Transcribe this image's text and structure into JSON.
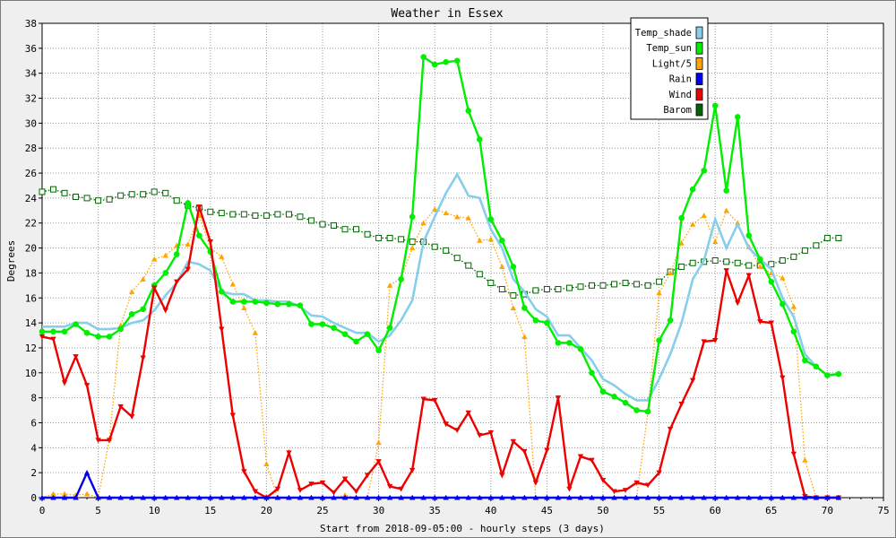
{
  "chart_data": {
    "type": "line",
    "title": "Weather in Essex",
    "xlabel": "Start from 2018-09-05:00 - hourly steps (3 days)",
    "ylabel": "Degrees",
    "xlim": [
      0,
      75
    ],
    "ylim": [
      0,
      38
    ],
    "xticks": [
      0,
      5,
      10,
      15,
      20,
      25,
      30,
      35,
      40,
      45,
      50,
      55,
      60,
      65,
      70,
      75
    ],
    "yticks": [
      0,
      2,
      4,
      6,
      8,
      10,
      12,
      14,
      16,
      18,
      20,
      22,
      24,
      26,
      28,
      30,
      32,
      34,
      36,
      38
    ],
    "grid": true,
    "legend_position": "top-right",
    "series": [
      {
        "name": "Temp_shade",
        "color": "#87ceeb",
        "line": "solid",
        "marker": "none",
        "values": [
          13.7,
          13.7,
          13.7,
          14.0,
          14.0,
          13.5,
          13.5,
          13.6,
          14.0,
          14.2,
          15.0,
          16.2,
          17.2,
          18.9,
          18.7,
          18.2,
          16.5,
          16.3,
          16.3,
          15.8,
          15.8,
          15.7,
          15.7,
          15.3,
          14.6,
          14.5,
          14.0,
          13.6,
          13.2,
          13.2,
          12.5,
          13.0,
          14.2,
          15.8,
          20.5,
          22.5,
          24.4,
          25.9,
          24.2,
          24.0,
          21.5,
          20.0,
          17.5,
          16.5,
          15.1,
          14.5,
          13.0,
          13.0,
          12.0,
          11.0,
          9.5,
          9.0,
          8.3,
          7.8,
          7.8,
          9.5,
          11.5,
          14.0,
          17.5,
          19.0,
          22.3,
          20.0,
          21.9,
          20.0,
          19.1,
          18.3,
          16.0,
          14.5,
          11.5,
          10.5,
          9.8,
          9.9
        ]
      },
      {
        "name": "Temp_sun",
        "color": "#00ee00",
        "line": "solid",
        "marker": "circle",
        "values": [
          13.3,
          13.3,
          13.3,
          13.9,
          13.2,
          12.9,
          12.9,
          13.5,
          14.7,
          15.1,
          17.0,
          18.0,
          19.5,
          23.6,
          21.0,
          19.7,
          16.5,
          15.7,
          15.7,
          15.7,
          15.6,
          15.5,
          15.5,
          15.4,
          13.9,
          13.9,
          13.6,
          13.1,
          12.5,
          13.1,
          11.8,
          13.6,
          17.5,
          22.5,
          35.3,
          34.7,
          34.9,
          35.0,
          31.0,
          28.7,
          22.3,
          20.6,
          18.5,
          15.2,
          14.2,
          14.0,
          12.4,
          12.4,
          11.9,
          10.0,
          8.5,
          8.1,
          7.6,
          7.0,
          6.9,
          12.6,
          14.2,
          22.4,
          24.7,
          26.2,
          31.4,
          24.6,
          30.5,
          21.0,
          19.1,
          17.3,
          15.5,
          13.3,
          11.0,
          10.5,
          9.8,
          9.9
        ]
      },
      {
        "name": "Light/5",
        "color": "#ffa500",
        "line": "dotted",
        "marker": "triangle",
        "values": [
          0.0,
          0.3,
          0.3,
          0.2,
          0.3,
          0.0,
          4.7,
          13.8,
          16.5,
          17.5,
          19.1,
          19.4,
          20.2,
          20.3,
          22.6,
          20.0,
          19.3,
          17.1,
          15.2,
          13.2,
          2.7,
          0.0,
          0.0,
          0.0,
          0.0,
          0.0,
          0.0,
          0.2,
          0.0,
          0.0,
          4.4,
          17.0,
          17.6,
          20.0,
          22.0,
          23.1,
          22.8,
          22.5,
          22.4,
          20.6,
          20.7,
          18.5,
          15.2,
          12.9,
          0.0,
          0.0,
          0.0,
          0.0,
          0.0,
          0.0,
          0.0,
          0.0,
          0.0,
          0.0,
          6.9,
          16.4,
          18.0,
          20.4,
          21.9,
          22.6,
          20.5,
          23.0,
          22.0,
          20.1,
          18.5,
          18.0,
          17.6,
          15.3,
          3.0,
          0.0,
          0.0,
          0.0
        ]
      },
      {
        "name": "Rain",
        "color": "#0000ee",
        "line": "solid",
        "marker": "triangle",
        "values": [
          0,
          0,
          0,
          0,
          2.0,
          0,
          0,
          0,
          0,
          0,
          0,
          0,
          0,
          0,
          0,
          0,
          0,
          0,
          0,
          0,
          0,
          0,
          0,
          0,
          0,
          0,
          0,
          0,
          0,
          0,
          0,
          0,
          0,
          0,
          0,
          0,
          0,
          0,
          0,
          0,
          0,
          0,
          0,
          0,
          0,
          0,
          0,
          0,
          0,
          0,
          0,
          0,
          0,
          0,
          0,
          0,
          0,
          0,
          0,
          0,
          0,
          0,
          0,
          0,
          0,
          0,
          0,
          0,
          0,
          0,
          0,
          0
        ]
      },
      {
        "name": "Wind",
        "color": "#ee0000",
        "line": "solid",
        "marker": "triangle-down",
        "values": [
          12.9,
          12.7,
          9.2,
          11.3,
          9.0,
          4.6,
          4.6,
          7.3,
          6.5,
          11.2,
          16.8,
          15.0,
          17.3,
          18.3,
          23.3,
          20.5,
          13.5,
          6.6,
          2.1,
          0.5,
          0.0,
          0.7,
          3.6,
          0.6,
          1.1,
          1.2,
          0.4,
          1.5,
          0.5,
          1.8,
          2.9,
          0.9,
          0.7,
          2.2,
          7.9,
          7.8,
          5.9,
          5.4,
          6.8,
          5.0,
          5.2,
          1.8,
          4.5,
          3.7,
          1.2,
          3.8,
          8.0,
          0.7,
          3.3,
          3.0,
          1.4,
          0.5,
          0.6,
          1.2,
          1.0,
          2.0,
          5.5,
          7.5,
          9.4,
          12.5,
          12.6,
          18.2,
          15.6,
          17.8,
          14.1,
          14.0,
          9.6,
          3.5,
          0.1,
          0.0,
          0.0,
          0.0
        ]
      },
      {
        "name": "Barom",
        "color": "#006400",
        "line": "dotted",
        "marker": "square",
        "values": [
          24.5,
          24.7,
          24.4,
          24.1,
          24.0,
          23.8,
          23.9,
          24.2,
          24.3,
          24.3,
          24.5,
          24.4,
          23.8,
          23.4,
          23.2,
          22.9,
          22.8,
          22.7,
          22.7,
          22.6,
          22.6,
          22.7,
          22.7,
          22.5,
          22.2,
          21.9,
          21.8,
          21.5,
          21.5,
          21.1,
          20.8,
          20.8,
          20.7,
          20.5,
          20.5,
          20.1,
          19.8,
          19.2,
          18.6,
          17.9,
          17.2,
          16.7,
          16.2,
          16.3,
          16.6,
          16.7,
          16.7,
          16.8,
          16.9,
          17.0,
          17.0,
          17.1,
          17.2,
          17.1,
          17.0,
          17.3,
          18.1,
          18.5,
          18.8,
          18.9,
          19.0,
          18.9,
          18.8,
          18.6,
          18.6,
          18.7,
          19.0,
          19.3,
          19.8,
          20.2,
          20.8,
          20.8
        ]
      }
    ]
  }
}
